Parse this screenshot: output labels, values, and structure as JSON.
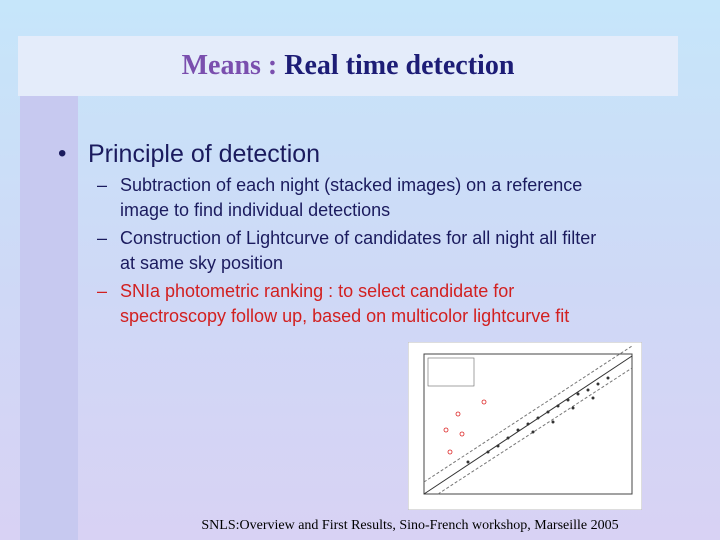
{
  "slide": {
    "title": {
      "lead": "Means :",
      "rest": "Real time detection"
    },
    "bullet": "Principle of detection",
    "sub_items": [
      {
        "lines": [
          "Subtraction of each night (stacked images) on a reference",
          "image to find individual detections"
        ]
      },
      {
        "lines": [
          "Construction of Lightcurve of candidates for all night all filter",
          "at same sky position"
        ]
      },
      {
        "lines": [
          "SNIa photometric ranking : to select candidate for",
          "spectroscopy follow up, based on multicolor lightcurve fit"
        ]
      }
    ],
    "footer": "SNLS:Overview and First Results, Sino-French workshop, Marseille 2005"
  }
}
